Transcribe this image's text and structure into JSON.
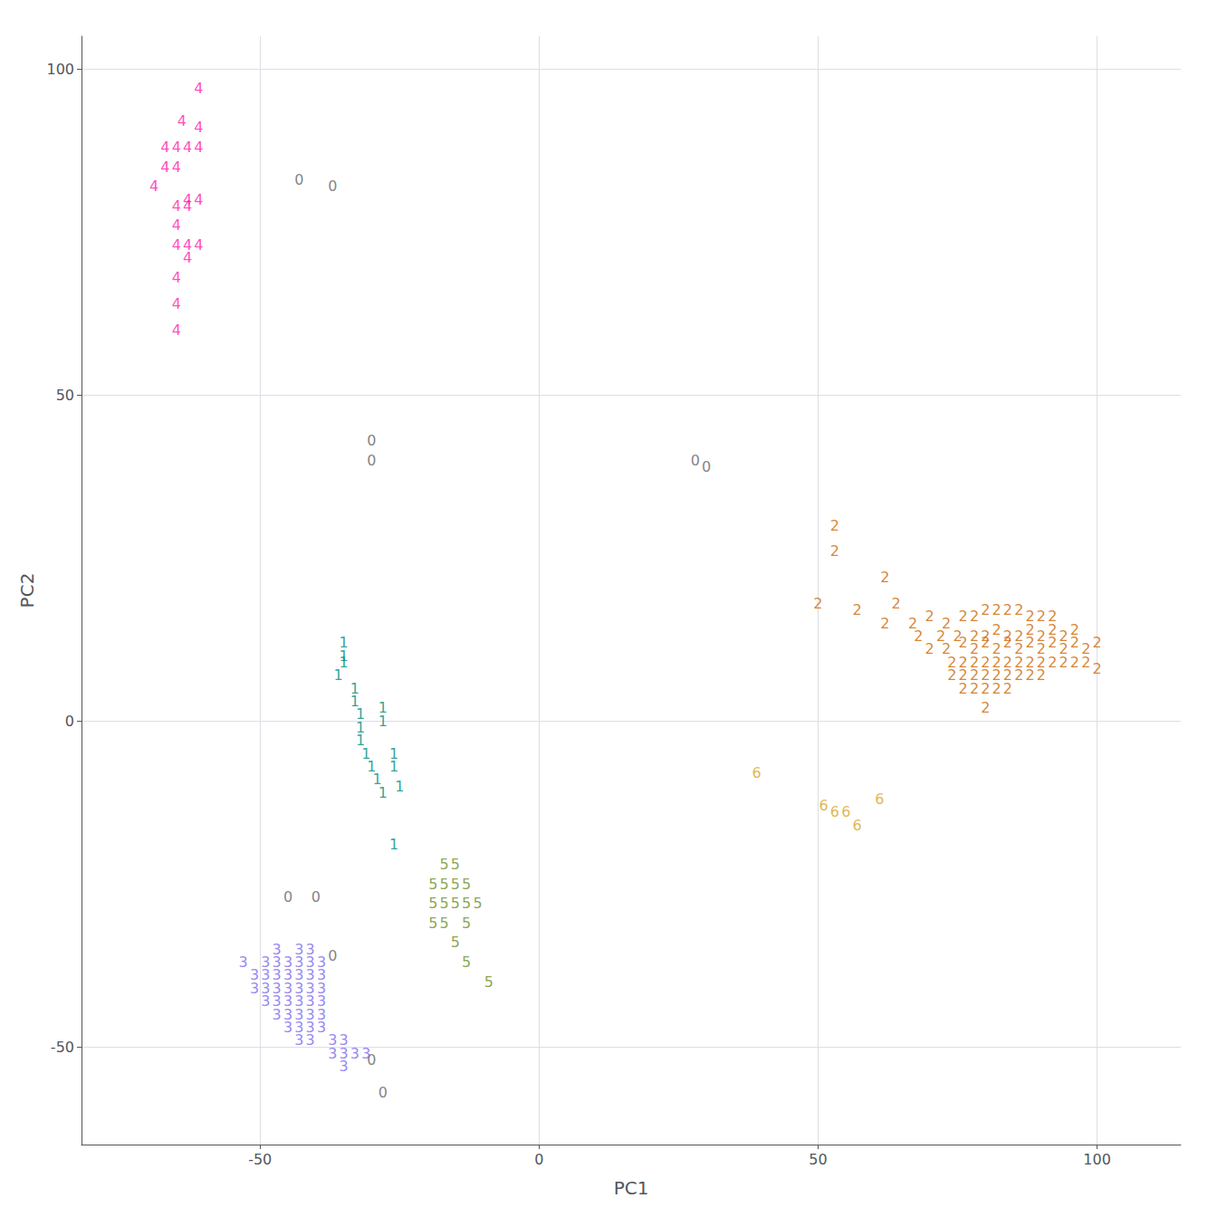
{
  "chart_data": {
    "type": "scatter",
    "xlabel": "PC1",
    "ylabel": "PC2",
    "xlim": [
      -82,
      115
    ],
    "ylim": [
      -65,
      105
    ],
    "xticks": [
      -50,
      0,
      50,
      100
    ],
    "yticks": [
      -50,
      0,
      50,
      100
    ],
    "grid": true,
    "marker": "text",
    "series": [
      {
        "name": "0",
        "color": "#636363",
        "values": [
          [
            -43,
            83
          ],
          [
            -37,
            82
          ],
          [
            -30,
            43
          ],
          [
            -30,
            40
          ],
          [
            28,
            40
          ],
          [
            30,
            39
          ],
          [
            -45,
            -27
          ],
          [
            -40,
            -27
          ],
          [
            -37,
            -36
          ],
          [
            -30,
            -52
          ],
          [
            -28,
            -57
          ]
        ]
      },
      {
        "name": "1",
        "color": "#008b80",
        "values": [
          [
            -35,
            12
          ],
          [
            -35,
            10
          ],
          [
            -35,
            9
          ],
          [
            -36,
            7
          ],
          [
            -33,
            5
          ],
          [
            -33,
            3
          ],
          [
            -32,
            1
          ],
          [
            -32,
            -1
          ],
          [
            -32,
            -3
          ],
          [
            -31,
            -5
          ],
          [
            -30,
            -7
          ],
          [
            -29,
            -9
          ],
          [
            -28,
            -11
          ],
          [
            -28,
            2
          ],
          [
            -28,
            0
          ],
          [
            -26,
            -5
          ],
          [
            -26,
            -7
          ],
          [
            -25,
            -10
          ],
          [
            -26,
            -19
          ]
        ]
      },
      {
        "name": "2",
        "color": "#cd6600",
        "values": [
          [
            53,
            30
          ],
          [
            53,
            26
          ],
          [
            62,
            22
          ],
          [
            50,
            18
          ],
          [
            57,
            17
          ],
          [
            64,
            18
          ],
          [
            62,
            15
          ],
          [
            67,
            15
          ],
          [
            70,
            16
          ],
          [
            73,
            15
          ],
          [
            76,
            16
          ],
          [
            78,
            16
          ],
          [
            80,
            17
          ],
          [
            82,
            17
          ],
          [
            84,
            17
          ],
          [
            86,
            17
          ],
          [
            88,
            16
          ],
          [
            90,
            16
          ],
          [
            92,
            16
          ],
          [
            68,
            13
          ],
          [
            72,
            13
          ],
          [
            75,
            13
          ],
          [
            78,
            13
          ],
          [
            80,
            13
          ],
          [
            82,
            14
          ],
          [
            84,
            13
          ],
          [
            86,
            13
          ],
          [
            88,
            14
          ],
          [
            90,
            13
          ],
          [
            92,
            14
          ],
          [
            94,
            13
          ],
          [
            96,
            14
          ],
          [
            70,
            11
          ],
          [
            73,
            11
          ],
          [
            76,
            12
          ],
          [
            78,
            11
          ],
          [
            80,
            12
          ],
          [
            82,
            11
          ],
          [
            84,
            12
          ],
          [
            86,
            11
          ],
          [
            88,
            12
          ],
          [
            90,
            11
          ],
          [
            92,
            12
          ],
          [
            94,
            11
          ],
          [
            96,
            12
          ],
          [
            98,
            11
          ],
          [
            100,
            12
          ],
          [
            74,
            9
          ],
          [
            76,
            9
          ],
          [
            78,
            9
          ],
          [
            80,
            9
          ],
          [
            82,
            9
          ],
          [
            84,
            9
          ],
          [
            86,
            9
          ],
          [
            88,
            9
          ],
          [
            90,
            9
          ],
          [
            92,
            9
          ],
          [
            94,
            9
          ],
          [
            96,
            9
          ],
          [
            98,
            9
          ],
          [
            74,
            7
          ],
          [
            76,
            7
          ],
          [
            78,
            7
          ],
          [
            80,
            7
          ],
          [
            82,
            7
          ],
          [
            84,
            7
          ],
          [
            86,
            7
          ],
          [
            88,
            7
          ],
          [
            90,
            7
          ],
          [
            76,
            5
          ],
          [
            78,
            5
          ],
          [
            80,
            5
          ],
          [
            82,
            5
          ],
          [
            84,
            5
          ],
          [
            80,
            2
          ],
          [
            100,
            8
          ]
        ]
      },
      {
        "name": "3",
        "color": "#7b68ee",
        "values": [
          [
            -53,
            -37
          ],
          [
            -51,
            -39
          ],
          [
            -51,
            -41
          ],
          [
            -49,
            -37
          ],
          [
            -49,
            -39
          ],
          [
            -49,
            -41
          ],
          [
            -49,
            -43
          ],
          [
            -47,
            -35
          ],
          [
            -47,
            -37
          ],
          [
            -47,
            -39
          ],
          [
            -47,
            -41
          ],
          [
            -47,
            -43
          ],
          [
            -47,
            -45
          ],
          [
            -45,
            -37
          ],
          [
            -45,
            -39
          ],
          [
            -45,
            -41
          ],
          [
            -45,
            -43
          ],
          [
            -45,
            -45
          ],
          [
            -45,
            -47
          ],
          [
            -43,
            -35
          ],
          [
            -43,
            -37
          ],
          [
            -43,
            -39
          ],
          [
            -43,
            -41
          ],
          [
            -43,
            -43
          ],
          [
            -43,
            -45
          ],
          [
            -43,
            -47
          ],
          [
            -43,
            -49
          ],
          [
            -41,
            -35
          ],
          [
            -41,
            -37
          ],
          [
            -41,
            -39
          ],
          [
            -41,
            -41
          ],
          [
            -41,
            -43
          ],
          [
            -41,
            -45
          ],
          [
            -41,
            -47
          ],
          [
            -41,
            -49
          ],
          [
            -39,
            -37
          ],
          [
            -39,
            -39
          ],
          [
            -39,
            -41
          ],
          [
            -39,
            -43
          ],
          [
            -39,
            -45
          ],
          [
            -39,
            -47
          ],
          [
            -37,
            -49
          ],
          [
            -37,
            -51
          ],
          [
            -35,
            -49
          ],
          [
            -35,
            -51
          ],
          [
            -35,
            -53
          ],
          [
            -33,
            -51
          ],
          [
            -31,
            -51
          ]
        ]
      },
      {
        "name": "4",
        "color": "#ff1aac",
        "values": [
          [
            -61,
            97
          ],
          [
            -64,
            92
          ],
          [
            -61,
            91
          ],
          [
            -67,
            88
          ],
          [
            -65,
            88
          ],
          [
            -63,
            88
          ],
          [
            -61,
            88
          ],
          [
            -67,
            85
          ],
          [
            -65,
            85
          ],
          [
            -69,
            82
          ],
          [
            -63,
            80
          ],
          [
            -61,
            80
          ],
          [
            -65,
            79
          ],
          [
            -63,
            79
          ],
          [
            -65,
            76
          ],
          [
            -65,
            73
          ],
          [
            -63,
            73
          ],
          [
            -61,
            73
          ],
          [
            -63,
            71
          ],
          [
            -65,
            68
          ],
          [
            -65,
            64
          ],
          [
            -65,
            60
          ]
        ]
      },
      {
        "name": "5",
        "color": "#6b8e23",
        "values": [
          [
            -17,
            -22
          ],
          [
            -15,
            -22
          ],
          [
            -19,
            -25
          ],
          [
            -17,
            -25
          ],
          [
            -15,
            -25
          ],
          [
            -13,
            -25
          ],
          [
            -19,
            -28
          ],
          [
            -17,
            -28
          ],
          [
            -15,
            -28
          ],
          [
            -13,
            -28
          ],
          [
            -11,
            -28
          ],
          [
            -19,
            -31
          ],
          [
            -17,
            -31
          ],
          [
            -13,
            -31
          ],
          [
            -15,
            -34
          ],
          [
            -13,
            -37
          ],
          [
            -9,
            -40
          ]
        ]
      },
      {
        "name": "6",
        "color": "#daa520",
        "values": [
          [
            39,
            -8
          ],
          [
            51,
            -13
          ],
          [
            53,
            -14
          ],
          [
            55,
            -14
          ],
          [
            61,
            -12
          ],
          [
            57,
            -16
          ]
        ]
      }
    ]
  }
}
